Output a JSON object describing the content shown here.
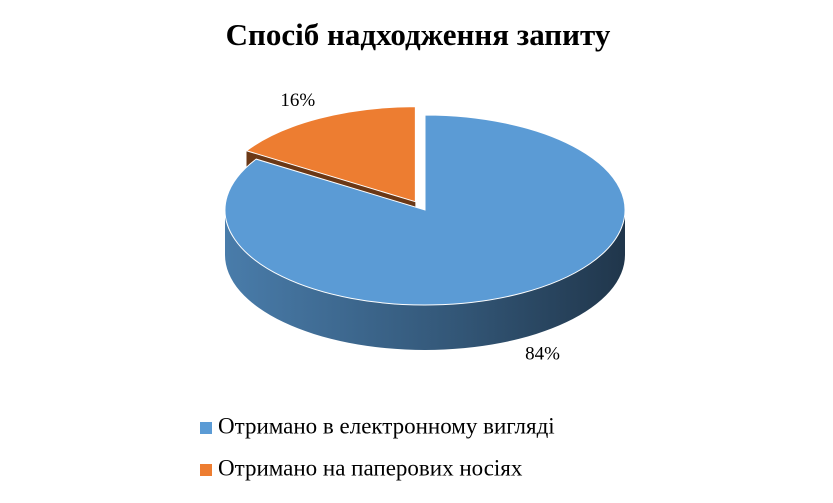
{
  "chart_data": {
    "type": "pie3d",
    "title": "Спосіб надходження запиту",
    "categories": [
      "Отримано в електронному вигляді",
      "Отримано на паперових носіях"
    ],
    "values": [
      84,
      16
    ],
    "value_labels": [
      "84%",
      "16%"
    ],
    "colors": [
      "#5b9bd5",
      "#ed7d31"
    ],
    "legend": "bottom"
  }
}
